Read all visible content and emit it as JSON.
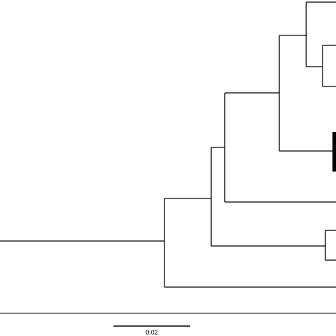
{
  "figure": {
    "type": "phylogenetic-tree",
    "line_color": "#000000",
    "background": "#ffffff",
    "scale_bar": {
      "label": "0.02"
    }
  }
}
